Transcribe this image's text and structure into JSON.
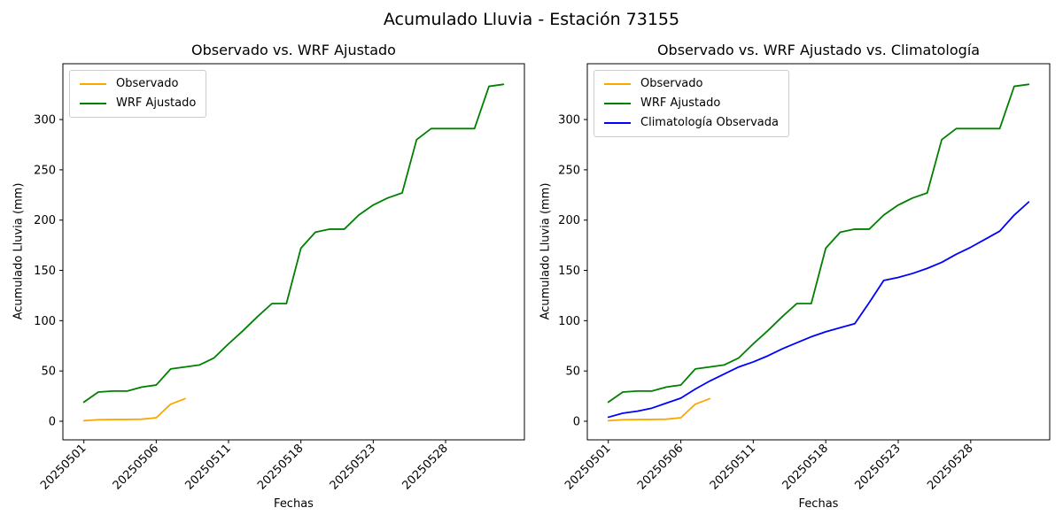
{
  "suptitle": "Acumulado Lluvia - Estación 73155",
  "chart_data": [
    {
      "type": "line",
      "title": "Observado vs. WRF Ajustado",
      "xlabel": "Fechas",
      "ylabel": "Acumulado Lluvia (mm)",
      "grid": false,
      "legend_position": "upper left",
      "yticks": [
        0,
        50,
        100,
        150,
        200,
        250,
        300
      ],
      "ylim": [
        -18.5,
        355.5
      ],
      "xlim": [
        -1.45,
        30.45
      ],
      "x_point_count": 30,
      "xtick_indices": [
        0,
        5,
        10,
        15,
        20,
        25
      ],
      "xtick_labels": [
        "20250501",
        "20250506",
        "20250511",
        "20250518",
        "20250523",
        "20250528"
      ],
      "series": [
        {
          "name": "Observado",
          "color": "#FFA500",
          "values": [
            0.5,
            1.5,
            1.7,
            1.8,
            2,
            3.5,
            17,
            22.5
          ]
        },
        {
          "name": "WRF Ajustado",
          "color": "#008000",
          "values": [
            19,
            29,
            30,
            30,
            34,
            36,
            52,
            54,
            56,
            63,
            77,
            90,
            104,
            117,
            117,
            172,
            188,
            191,
            191,
            205,
            215,
            222,
            227,
            280,
            291,
            291,
            291,
            291,
            333,
            335
          ]
        }
      ]
    },
    {
      "type": "line",
      "title": "Observado vs. WRF Ajustado vs. Climatología",
      "xlabel": "Fechas",
      "ylabel": "Acumulado Lluvia (mm)",
      "grid": false,
      "legend_position": "upper left",
      "yticks": [
        0,
        50,
        100,
        150,
        200,
        250,
        300
      ],
      "ylim": [
        -18.5,
        355.5
      ],
      "xlim": [
        -1.45,
        30.45
      ],
      "x_point_count": 30,
      "xtick_indices": [
        0,
        5,
        10,
        15,
        20,
        25
      ],
      "xtick_labels": [
        "20250501",
        "20250506",
        "20250511",
        "20250518",
        "20250523",
        "20250528"
      ],
      "series": [
        {
          "name": "Observado",
          "color": "#FFA500",
          "values": [
            0.5,
            1.5,
            1.7,
            1.8,
            2,
            3.5,
            17,
            22.5
          ]
        },
        {
          "name": "WRF Ajustado",
          "color": "#008000",
          "values": [
            19,
            29,
            30,
            30,
            34,
            36,
            52,
            54,
            56,
            63,
            77,
            90,
            104,
            117,
            117,
            172,
            188,
            191,
            191,
            205,
            215,
            222,
            227,
            280,
            291,
            291,
            291,
            291,
            333,
            335
          ]
        },
        {
          "name": "Climatología Observada",
          "color": "#0000FF",
          "values": [
            4,
            8,
            10,
            13,
            18,
            23,
            32,
            40,
            47,
            54,
            59,
            65,
            72,
            78,
            84,
            89,
            93,
            97,
            118,
            140,
            143,
            147,
            152,
            158,
            166,
            173,
            181,
            189,
            205,
            218
          ]
        }
      ]
    }
  ]
}
